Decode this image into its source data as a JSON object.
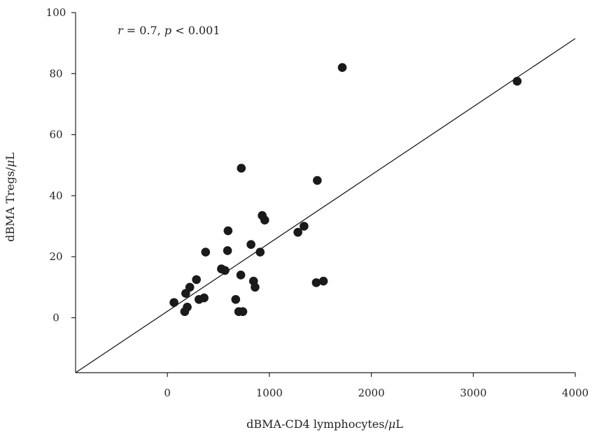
{
  "chart_data": {
    "type": "scatter",
    "title": "",
    "xlabel": "dBMA-CD4 lymphocytes/μL",
    "ylabel": "dBMA Tregs/μL",
    "annotation": "r = 0.7, p < 0.001",
    "xlim": [
      -900,
      4000
    ],
    "ylim": [
      -18,
      100
    ],
    "xticks": [
      0,
      1000,
      2000,
      3000,
      4000
    ],
    "yticks": [
      0,
      20,
      40,
      60,
      80,
      100
    ],
    "grid": false,
    "legend": "none",
    "marker_color": "#1a1a1a",
    "points": [
      {
        "x": 65,
        "y": 5
      },
      {
        "x": 170,
        "y": 2
      },
      {
        "x": 180,
        "y": 8
      },
      {
        "x": 195,
        "y": 3.5
      },
      {
        "x": 220,
        "y": 10
      },
      {
        "x": 285,
        "y": 12.5
      },
      {
        "x": 310,
        "y": 6
      },
      {
        "x": 360,
        "y": 6.5
      },
      {
        "x": 375,
        "y": 21.5
      },
      {
        "x": 530,
        "y": 16
      },
      {
        "x": 565,
        "y": 15.5
      },
      {
        "x": 590,
        "y": 22
      },
      {
        "x": 595,
        "y": 28.5
      },
      {
        "x": 670,
        "y": 6
      },
      {
        "x": 700,
        "y": 2
      },
      {
        "x": 720,
        "y": 14
      },
      {
        "x": 725,
        "y": 49
      },
      {
        "x": 740,
        "y": 2
      },
      {
        "x": 820,
        "y": 24
      },
      {
        "x": 845,
        "y": 12
      },
      {
        "x": 860,
        "y": 10
      },
      {
        "x": 910,
        "y": 21.5
      },
      {
        "x": 930,
        "y": 33.5
      },
      {
        "x": 955,
        "y": 32
      },
      {
        "x": 1280,
        "y": 28
      },
      {
        "x": 1340,
        "y": 30
      },
      {
        "x": 1460,
        "y": 11.5
      },
      {
        "x": 1470,
        "y": 45
      },
      {
        "x": 1530,
        "y": 12
      },
      {
        "x": 1715,
        "y": 82
      },
      {
        "x": 3430,
        "y": 77.5
      }
    ],
    "trendline": {
      "x1": -900,
      "y1": -18,
      "x2": 4000,
      "y2": 91.5
    }
  }
}
